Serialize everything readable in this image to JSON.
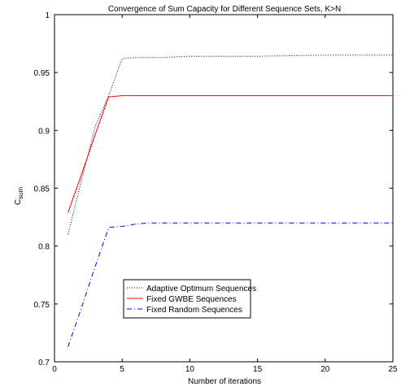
{
  "chart_data": {
    "type": "line",
    "title": "Convergence of Sum Capacity for Different Sequence Sets, K>N",
    "xlabel": "Number of iterations",
    "ylabel": {
      "main": "C",
      "sub": "sum"
    },
    "xlim": [
      0,
      25
    ],
    "ylim": [
      0.7,
      1.0
    ],
    "xticks": [
      "0",
      "5",
      "10",
      "15",
      "20",
      "25"
    ],
    "yticks": [
      "0.7",
      "0.75",
      "0.8",
      "0.85",
      "0.9",
      "0.95",
      "1"
    ],
    "grid": false,
    "legend_position": "lower-left",
    "series": [
      {
        "name": "Adaptive Optimum Sequences",
        "color": "#000000",
        "style": "dotted",
        "x": [
          1,
          2,
          3,
          4,
          5,
          6,
          8,
          10,
          15,
          20,
          25
        ],
        "y": [
          0.81,
          0.857,
          0.903,
          0.93,
          0.962,
          0.963,
          0.963,
          0.964,
          0.964,
          0.965,
          0.965
        ]
      },
      {
        "name": "Fixed GWBE Sequences",
        "color": "#ff0000",
        "style": "solid",
        "x": [
          1,
          2,
          3,
          4,
          5,
          10,
          15,
          20,
          25
        ],
        "y": [
          0.829,
          0.862,
          0.896,
          0.929,
          0.93,
          0.93,
          0.93,
          0.93,
          0.93
        ]
      },
      {
        "name": "Fixed Random Sequences",
        "color": "#0000ff",
        "style": "dashdot",
        "x": [
          1,
          2,
          3,
          4,
          5,
          6,
          7,
          10,
          15,
          20,
          25
        ],
        "y": [
          0.713,
          0.747,
          0.782,
          0.816,
          0.817,
          0.819,
          0.82,
          0.82,
          0.82,
          0.82,
          0.82
        ]
      }
    ]
  }
}
